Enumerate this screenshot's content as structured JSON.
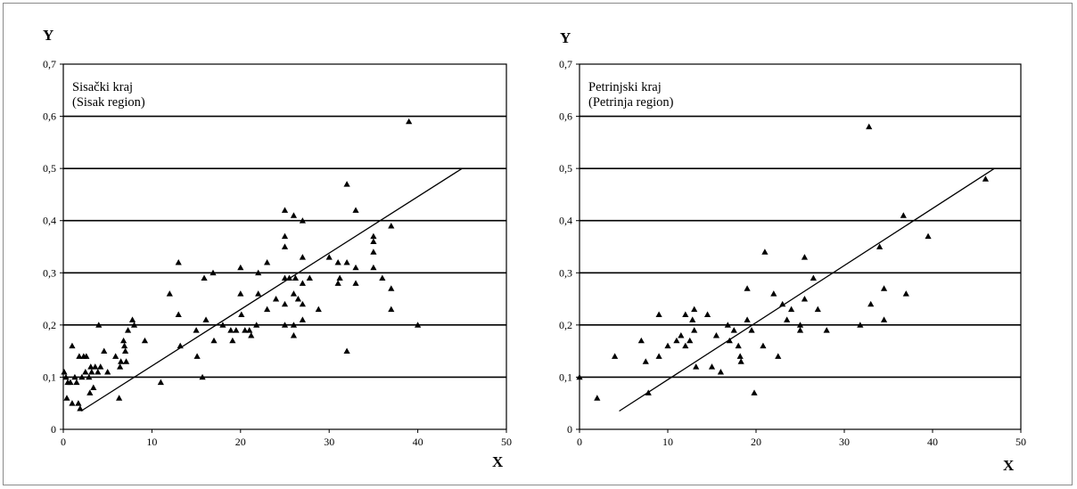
{
  "chart_data": [
    {
      "type": "scatter",
      "title": "Sisački kraj",
      "subtitle": "(Sisak region)",
      "xlabel": "X",
      "ylabel": "Y",
      "xlim": [
        0,
        50
      ],
      "ylim": [
        0,
        0.7
      ],
      "xticks": [
        "0",
        "10",
        "20",
        "30",
        "40",
        "50"
      ],
      "yticks": [
        "0",
        "0,1",
        "0,2",
        "0,3",
        "0,4",
        "0,5",
        "0,6",
        "0,7"
      ],
      "grid": "horizontal",
      "marker": "triangle",
      "trendline": [
        [
          2,
          0.035
        ],
        [
          45,
          0.5
        ]
      ],
      "points": [
        [
          0.1,
          0.11
        ],
        [
          0.3,
          0.1
        ],
        [
          0.5,
          0.09
        ],
        [
          0.4,
          0.06
        ],
        [
          0.8,
          0.09
        ],
        [
          1,
          0.16
        ],
        [
          1,
          0.05
        ],
        [
          1.3,
          0.1
        ],
        [
          1.5,
          0.09
        ],
        [
          1.7,
          0.05
        ],
        [
          1.9,
          0.04
        ],
        [
          1.8,
          0.14
        ],
        [
          2.1,
          0.1
        ],
        [
          2.3,
          0.14
        ],
        [
          2.6,
          0.14
        ],
        [
          2.5,
          0.11
        ],
        [
          2.9,
          0.1
        ],
        [
          3,
          0.07
        ],
        [
          3.1,
          0.12
        ],
        [
          3.2,
          0.11
        ],
        [
          3.4,
          0.08
        ],
        [
          3.6,
          0.12
        ],
        [
          3.9,
          0.11
        ],
        [
          4,
          0.2
        ],
        [
          4.2,
          0.12
        ],
        [
          4.6,
          0.15
        ],
        [
          5,
          0.11
        ],
        [
          5.9,
          0.14
        ],
        [
          6.3,
          0.06
        ],
        [
          6.4,
          0.12
        ],
        [
          6.5,
          0.13
        ],
        [
          6.8,
          0.17
        ],
        [
          6.9,
          0.16
        ],
        [
          7,
          0.15
        ],
        [
          7.1,
          0.13
        ],
        [
          7.3,
          0.19
        ],
        [
          7.8,
          0.21
        ],
        [
          8,
          0.2
        ],
        [
          9.2,
          0.17
        ],
        [
          11,
          0.09
        ],
        [
          12,
          0.26
        ],
        [
          13,
          0.32
        ],
        [
          13,
          0.22
        ],
        [
          13.2,
          0.16
        ],
        [
          15,
          0.19
        ],
        [
          15.1,
          0.14
        ],
        [
          15.7,
          0.1
        ],
        [
          15.9,
          0.29
        ],
        [
          16.1,
          0.21
        ],
        [
          16.9,
          0.3
        ],
        [
          17,
          0.17
        ],
        [
          18,
          0.2
        ],
        [
          18.9,
          0.19
        ],
        [
          19.1,
          0.17
        ],
        [
          19.5,
          0.19
        ],
        [
          20,
          0.31
        ],
        [
          20,
          0.26
        ],
        [
          20.1,
          0.22
        ],
        [
          20.5,
          0.19
        ],
        [
          21,
          0.19
        ],
        [
          21.2,
          0.18
        ],
        [
          21.8,
          0.2
        ],
        [
          22,
          0.3
        ],
        [
          22,
          0.26
        ],
        [
          23,
          0.32
        ],
        [
          23,
          0.23
        ],
        [
          24,
          0.25
        ],
        [
          25,
          0.42
        ],
        [
          25,
          0.37
        ],
        [
          25,
          0.35
        ],
        [
          25,
          0.29
        ],
        [
          25,
          0.24
        ],
        [
          25,
          0.2
        ],
        [
          25.5,
          0.29
        ],
        [
          26,
          0.41
        ],
        [
          26,
          0.26
        ],
        [
          26,
          0.2
        ],
        [
          26,
          0.18
        ],
        [
          26.2,
          0.29
        ],
        [
          26.5,
          0.25
        ],
        [
          27,
          0.4
        ],
        [
          27,
          0.33
        ],
        [
          27,
          0.28
        ],
        [
          27,
          0.24
        ],
        [
          27,
          0.21
        ],
        [
          27.8,
          0.29
        ],
        [
          28.8,
          0.23
        ],
        [
          30,
          0.33
        ],
        [
          31,
          0.32
        ],
        [
          31,
          0.28
        ],
        [
          31.2,
          0.29
        ],
        [
          32,
          0.47
        ],
        [
          32,
          0.32
        ],
        [
          32,
          0.15
        ],
        [
          33,
          0.42
        ],
        [
          33,
          0.31
        ],
        [
          33,
          0.28
        ],
        [
          35,
          0.37
        ],
        [
          35,
          0.36
        ],
        [
          35,
          0.34
        ],
        [
          35,
          0.31
        ],
        [
          36,
          0.29
        ],
        [
          37,
          0.39
        ],
        [
          37,
          0.27
        ],
        [
          37,
          0.23
        ],
        [
          39,
          0.59
        ],
        [
          40,
          0.2
        ]
      ]
    },
    {
      "type": "scatter",
      "title": "Petrinjski kraj",
      "subtitle": "(Petrinja region)",
      "xlabel": "X",
      "ylabel": "Y",
      "xlim": [
        0,
        50
      ],
      "ylim": [
        0,
        0.7
      ],
      "xticks": [
        "0",
        "10",
        "20",
        "30",
        "40",
        "50"
      ],
      "yticks": [
        "0",
        "0,1",
        "0,2",
        "0,3",
        "0,4",
        "0,5",
        "0,6",
        "0,7"
      ],
      "grid": "horizontal",
      "marker": "triangle",
      "trendline": [
        [
          4.5,
          0.035
        ],
        [
          47,
          0.5
        ]
      ],
      "points": [
        [
          0,
          0.1
        ],
        [
          2,
          0.06
        ],
        [
          4,
          0.14
        ],
        [
          7,
          0.17
        ],
        [
          7.5,
          0.13
        ],
        [
          7.8,
          0.07
        ],
        [
          9,
          0.22
        ],
        [
          9,
          0.14
        ],
        [
          10,
          0.16
        ],
        [
          11,
          0.17
        ],
        [
          11.5,
          0.18
        ],
        [
          12,
          0.22
        ],
        [
          12,
          0.16
        ],
        [
          12.5,
          0.17
        ],
        [
          12.8,
          0.21
        ],
        [
          13,
          0.23
        ],
        [
          13,
          0.19
        ],
        [
          13.2,
          0.12
        ],
        [
          14.5,
          0.22
        ],
        [
          15,
          0.12
        ],
        [
          15.5,
          0.18
        ],
        [
          16,
          0.11
        ],
        [
          16.8,
          0.2
        ],
        [
          17,
          0.17
        ],
        [
          17.5,
          0.19
        ],
        [
          18,
          0.16
        ],
        [
          18.2,
          0.14
        ],
        [
          18.3,
          0.13
        ],
        [
          19,
          0.27
        ],
        [
          19,
          0.21
        ],
        [
          19.5,
          0.19
        ],
        [
          19.8,
          0.07
        ],
        [
          20.8,
          0.16
        ],
        [
          21,
          0.34
        ],
        [
          22,
          0.26
        ],
        [
          22.5,
          0.14
        ],
        [
          23,
          0.24
        ],
        [
          23.5,
          0.21
        ],
        [
          24,
          0.23
        ],
        [
          25,
          0.19
        ],
        [
          25,
          0.2
        ],
        [
          25.5,
          0.33
        ],
        [
          25.5,
          0.25
        ],
        [
          26.5,
          0.29
        ],
        [
          27,
          0.23
        ],
        [
          28,
          0.19
        ],
        [
          31.8,
          0.2
        ],
        [
          32.8,
          0.58
        ],
        [
          33,
          0.24
        ],
        [
          34,
          0.35
        ],
        [
          34.5,
          0.27
        ],
        [
          34.5,
          0.21
        ],
        [
          36.7,
          0.41
        ],
        [
          37,
          0.26
        ],
        [
          39.5,
          0.37
        ],
        [
          46,
          0.48
        ]
      ]
    }
  ]
}
